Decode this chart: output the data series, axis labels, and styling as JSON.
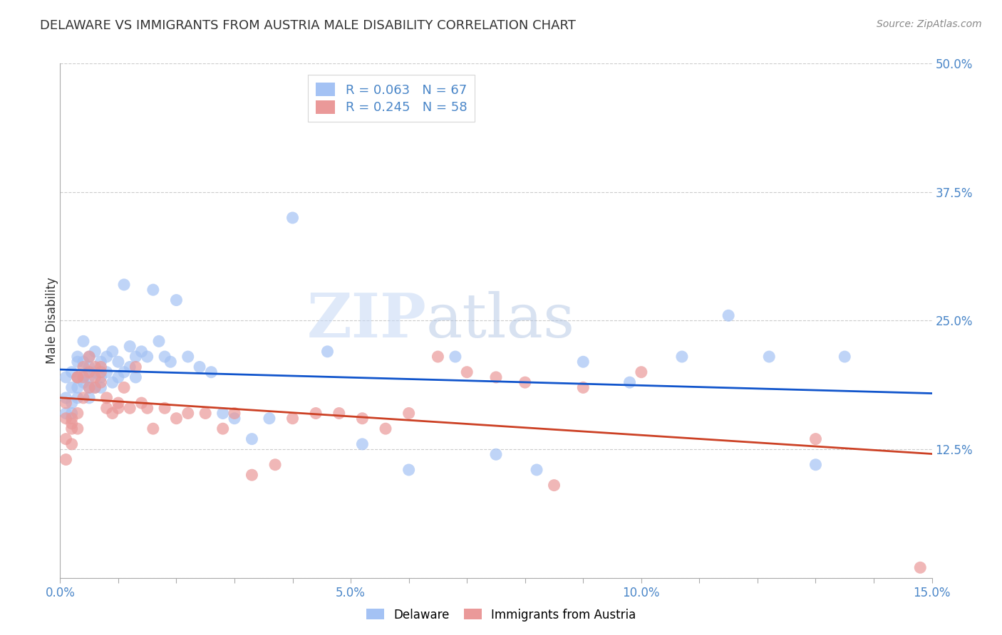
{
  "title": "DELAWARE VS IMMIGRANTS FROM AUSTRIA MALE DISABILITY CORRELATION CHART",
  "source": "Source: ZipAtlas.com",
  "xlabel_label": "Delaware",
  "xlabel_label2": "Immigrants from Austria",
  "ylabel": "Male Disability",
  "xlim": [
    0.0,
    0.15
  ],
  "ylim": [
    0.0,
    0.5
  ],
  "color_blue": "#a4c2f4",
  "color_pink": "#ea9999",
  "color_blue_line": "#1155cc",
  "color_pink_line": "#cc4125",
  "color_axis_blue": "#4a86c8",
  "legend_r1": "R = 0.063",
  "legend_n1": "N = 67",
  "legend_r2": "R = 0.245",
  "legend_n2": "N = 58",
  "watermark_zip": "ZIP",
  "watermark_atlas": "atlas",
  "blue_x": [
    0.001,
    0.001,
    0.001,
    0.002,
    0.002,
    0.002,
    0.002,
    0.003,
    0.003,
    0.003,
    0.003,
    0.003,
    0.004,
    0.004,
    0.004,
    0.004,
    0.005,
    0.005,
    0.005,
    0.005,
    0.005,
    0.006,
    0.006,
    0.006,
    0.007,
    0.007,
    0.007,
    0.008,
    0.008,
    0.009,
    0.009,
    0.01,
    0.01,
    0.011,
    0.011,
    0.012,
    0.012,
    0.013,
    0.013,
    0.014,
    0.015,
    0.016,
    0.017,
    0.018,
    0.019,
    0.02,
    0.022,
    0.024,
    0.026,
    0.028,
    0.03,
    0.033,
    0.036,
    0.04,
    0.046,
    0.052,
    0.06,
    0.068,
    0.075,
    0.082,
    0.09,
    0.098,
    0.107,
    0.115,
    0.122,
    0.13,
    0.135
  ],
  "blue_y": [
    0.175,
    0.195,
    0.16,
    0.16,
    0.17,
    0.185,
    0.2,
    0.175,
    0.185,
    0.195,
    0.215,
    0.21,
    0.19,
    0.21,
    0.23,
    0.195,
    0.185,
    0.175,
    0.195,
    0.215,
    0.205,
    0.2,
    0.185,
    0.22,
    0.195,
    0.21,
    0.185,
    0.215,
    0.2,
    0.19,
    0.22,
    0.195,
    0.21,
    0.2,
    0.285,
    0.225,
    0.205,
    0.215,
    0.195,
    0.22,
    0.215,
    0.28,
    0.23,
    0.215,
    0.21,
    0.27,
    0.215,
    0.205,
    0.2,
    0.16,
    0.155,
    0.135,
    0.155,
    0.35,
    0.22,
    0.13,
    0.105,
    0.215,
    0.12,
    0.105,
    0.21,
    0.19,
    0.215,
    0.255,
    0.215,
    0.11,
    0.215
  ],
  "pink_x": [
    0.001,
    0.001,
    0.001,
    0.001,
    0.002,
    0.002,
    0.002,
    0.002,
    0.003,
    0.003,
    0.003,
    0.003,
    0.004,
    0.004,
    0.004,
    0.005,
    0.005,
    0.005,
    0.006,
    0.006,
    0.006,
    0.007,
    0.007,
    0.007,
    0.008,
    0.008,
    0.009,
    0.01,
    0.01,
    0.011,
    0.012,
    0.013,
    0.014,
    0.015,
    0.016,
    0.018,
    0.02,
    0.022,
    0.025,
    0.028,
    0.03,
    0.033,
    0.037,
    0.04,
    0.044,
    0.048,
    0.052,
    0.056,
    0.06,
    0.065,
    0.07,
    0.075,
    0.08,
    0.085,
    0.09,
    0.1,
    0.13,
    0.148
  ],
  "pink_y": [
    0.155,
    0.17,
    0.135,
    0.115,
    0.15,
    0.155,
    0.145,
    0.13,
    0.145,
    0.16,
    0.195,
    0.195,
    0.205,
    0.195,
    0.175,
    0.185,
    0.215,
    0.2,
    0.195,
    0.185,
    0.205,
    0.2,
    0.205,
    0.19,
    0.175,
    0.165,
    0.16,
    0.165,
    0.17,
    0.185,
    0.165,
    0.205,
    0.17,
    0.165,
    0.145,
    0.165,
    0.155,
    0.16,
    0.16,
    0.145,
    0.16,
    0.1,
    0.11,
    0.155,
    0.16,
    0.16,
    0.155,
    0.145,
    0.16,
    0.215,
    0.2,
    0.195,
    0.19,
    0.09,
    0.185,
    0.2,
    0.135,
    0.01
  ]
}
